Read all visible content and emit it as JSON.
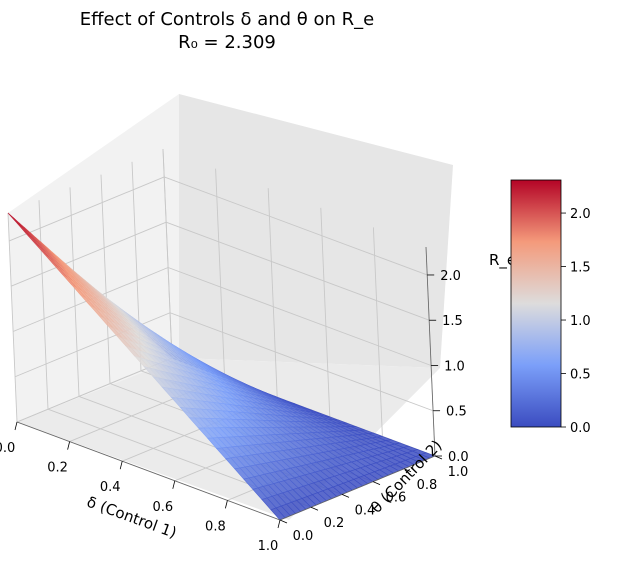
{
  "chart_data": {
    "type": "surface",
    "title": "Effect of Controls δ and θ on R_e",
    "subtitle": "R₀ = 2.309",
    "r0": 2.309,
    "xlabel": "δ (Control 1)",
    "ylabel": "θ (Control 2)",
    "zlabel": "R_e",
    "xlim": [
      0,
      1
    ],
    "ylim": [
      0,
      1
    ],
    "zlim": [
      0,
      2.309
    ],
    "x_ticks": [
      "0.0",
      "0.2",
      "0.4",
      "0.6",
      "0.8",
      "1.0"
    ],
    "y_ticks": [
      "0.0",
      "0.2",
      "0.4",
      "0.6",
      "0.8",
      "1.0"
    ],
    "z_ticks": [
      "0.0",
      "0.5",
      "1.0",
      "1.5",
      "2.0"
    ],
    "surface_function": "R_e = R0 * (1 - δ) * (1 - θ)",
    "surface_samples": {
      "x": [
        0.0,
        0.5,
        1.0
      ],
      "y": [
        0.0,
        0.5,
        1.0
      ],
      "z": [
        [
          2.309,
          1.155,
          0.0
        ],
        [
          1.155,
          0.577,
          0.0
        ],
        [
          0.0,
          0.0,
          0.0
        ]
      ]
    },
    "grid": true,
    "colorbar": {
      "colormap": "coolwarm",
      "range": [
        0,
        2.309
      ],
      "ticks": [
        "0.0",
        "0.5",
        "1.0",
        "1.5",
        "2.0"
      ]
    }
  }
}
